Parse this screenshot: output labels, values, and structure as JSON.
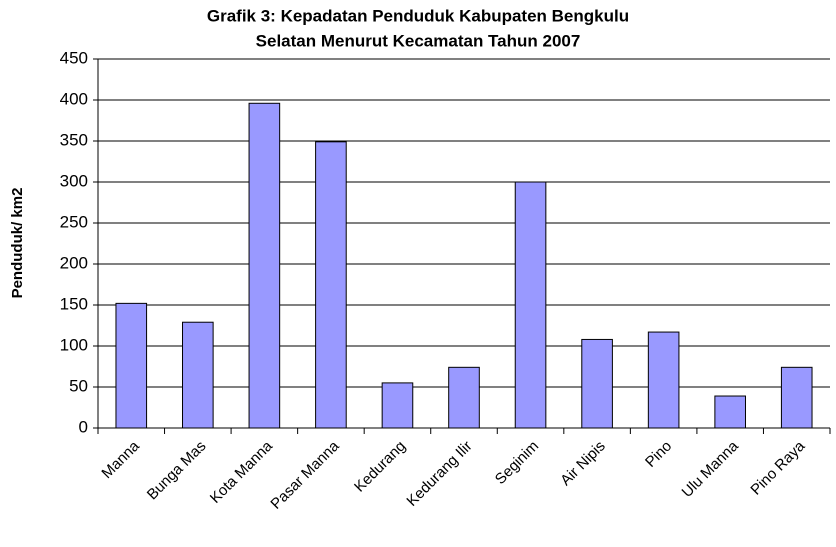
{
  "chart_data": {
    "type": "bar",
    "title": [
      "Grafik 3: Kepadatan Penduduk Kabupaten Bengkulu",
      "Selatan Menurut Kecamatan Tahun 2007"
    ],
    "ylabel": "Penduduk/ km2",
    "categories": [
      "Manna",
      "Bunga Mas",
      "Kota Manna",
      "Pasar Manna",
      "Kedurang",
      "Kedurang Ilir",
      "Seginim",
      "Air Nipis",
      "Pino",
      "Ulu Manna",
      "Pino Raya"
    ],
    "values": [
      152,
      129,
      396,
      349,
      55,
      74,
      300,
      108,
      117,
      39,
      74
    ],
    "color": "#9999ff",
    "ylim": [
      0,
      450
    ],
    "yticks": [
      0,
      50,
      100,
      150,
      200,
      250,
      300,
      350,
      400,
      450
    ],
    "grid": true
  }
}
